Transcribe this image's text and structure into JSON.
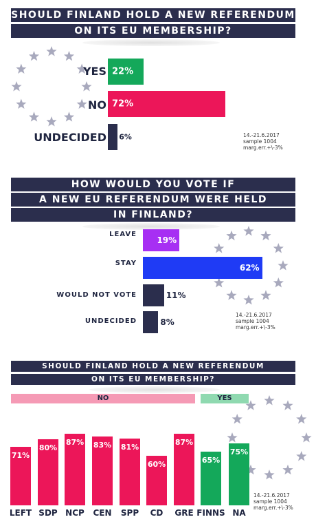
{
  "colors": {
    "navy": "#2b2e4d",
    "green": "#14a85a",
    "pink": "#ec1659",
    "purple": "#a72ff3",
    "blue": "#1f3bf5",
    "star": "#a8a9bd",
    "pinkLight": "#f59ab5",
    "greenLight": "#8fd9b0"
  },
  "icons": [
    "eu-star-circle"
  ],
  "chart_data": [
    {
      "type": "bar",
      "title": [
        "SHOULD FINLAND HOLD A NEW REFERENDUM",
        "ON ITS EU MEMBERSHIP?"
      ],
      "categories": [
        "YES",
        "NO",
        "UNDECIDED"
      ],
      "values": [
        22,
        72,
        6
      ],
      "labels": [
        "22%",
        "72%",
        "6%"
      ],
      "colors": [
        "#14a85a",
        "#ec1659",
        "#2b2e4d"
      ],
      "note": [
        "14.-21.6.2017",
        "sample 1004",
        "marg.err.+\\-3%"
      ]
    },
    {
      "type": "bar",
      "title": [
        "HOW WOULD YOU VOTE IF",
        "A NEW EU REFERENDUM WERE HELD",
        "IN FINLAND?"
      ],
      "categories": [
        "LEAVE",
        "STAY",
        "WOULD NOT VOTE",
        "UNDECIDED"
      ],
      "values": [
        19,
        62,
        11,
        8
      ],
      "labels": [
        "19%",
        "62%",
        "11%",
        "8%"
      ],
      "colors": [
        "#a72ff3",
        "#1f3bf5",
        "#2b2e4d",
        "#2b2e4d"
      ],
      "note": [
        "14.-21.6.2017",
        "sample 1004",
        "marg.err.+\\-3%"
      ]
    },
    {
      "type": "bar",
      "title": [
        "SHOULD FINLAND HOLD A NEW REFERENDUM",
        "ON ITS EU MEMBERSHIP?"
      ],
      "groups": [
        {
          "label": "NO",
          "categories": [
            "LEFT",
            "SDP",
            "NCP",
            "CEN",
            "SPP",
            "CD",
            "GRE"
          ]
        },
        {
          "label": "YES",
          "categories": [
            "FINNS",
            "NA"
          ]
        }
      ],
      "categories": [
        "LEFT",
        "SDP",
        "NCP",
        "CEN",
        "SPP",
        "CD",
        "GRE",
        "FINNS",
        "NA"
      ],
      "values": [
        71,
        80,
        87,
        83,
        81,
        60,
        87,
        65,
        75
      ],
      "labels": [
        "71%",
        "80%",
        "87%",
        "83%",
        "81%",
        "60%",
        "87%",
        "65%",
        "75%"
      ],
      "colors": [
        "#ec1659",
        "#ec1659",
        "#ec1659",
        "#ec1659",
        "#ec1659",
        "#ec1659",
        "#ec1659",
        "#14a85a",
        "#14a85a"
      ],
      "note": [
        "14.-21.6.2017",
        "sample 1004",
        "marg.err.+\\-3%"
      ]
    }
  ]
}
